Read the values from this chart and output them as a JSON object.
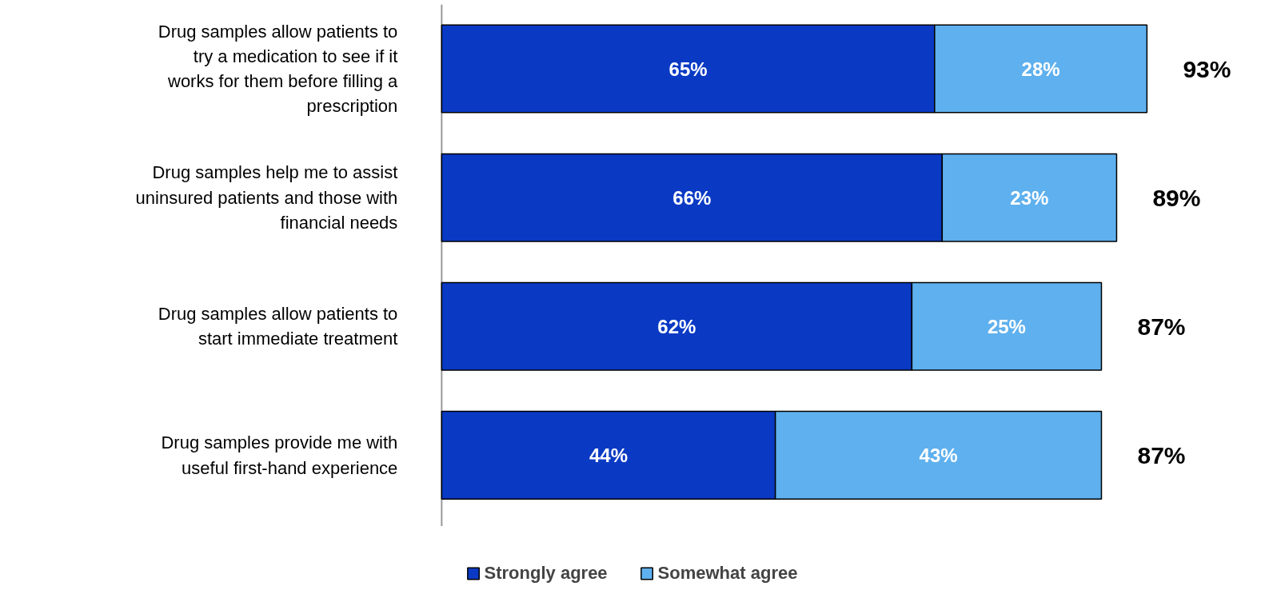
{
  "chart_data": {
    "type": "bar",
    "orientation": "horizontal",
    "stacked": true,
    "categories": [
      "Drug samples allow patients to try a medication to see if it works for them before filling a prescription",
      "Drug samples help me to assist uninsured patients and those with financial needs",
      "Drug samples allow patients to start immediate treatment",
      "Drug samples provide me with useful first-hand experience"
    ],
    "series": [
      {
        "name": "Strongly agree",
        "color": "#0a3ac4",
        "values": [
          65,
          66,
          62,
          44
        ],
        "value_labels": [
          "65%",
          "66%",
          "62%",
          "44%"
        ]
      },
      {
        "name": "Somewhat agree",
        "color": "#5fb0ee",
        "values": [
          28,
          23,
          25,
          43
        ],
        "value_labels": [
          "28%",
          "23%",
          "25%",
          "43%"
        ]
      }
    ],
    "totals": [
      "93%",
      "89%",
      "87%",
      "87%"
    ],
    "tick_labels": "y",
    "grid": false,
    "legend": "bottom"
  }
}
